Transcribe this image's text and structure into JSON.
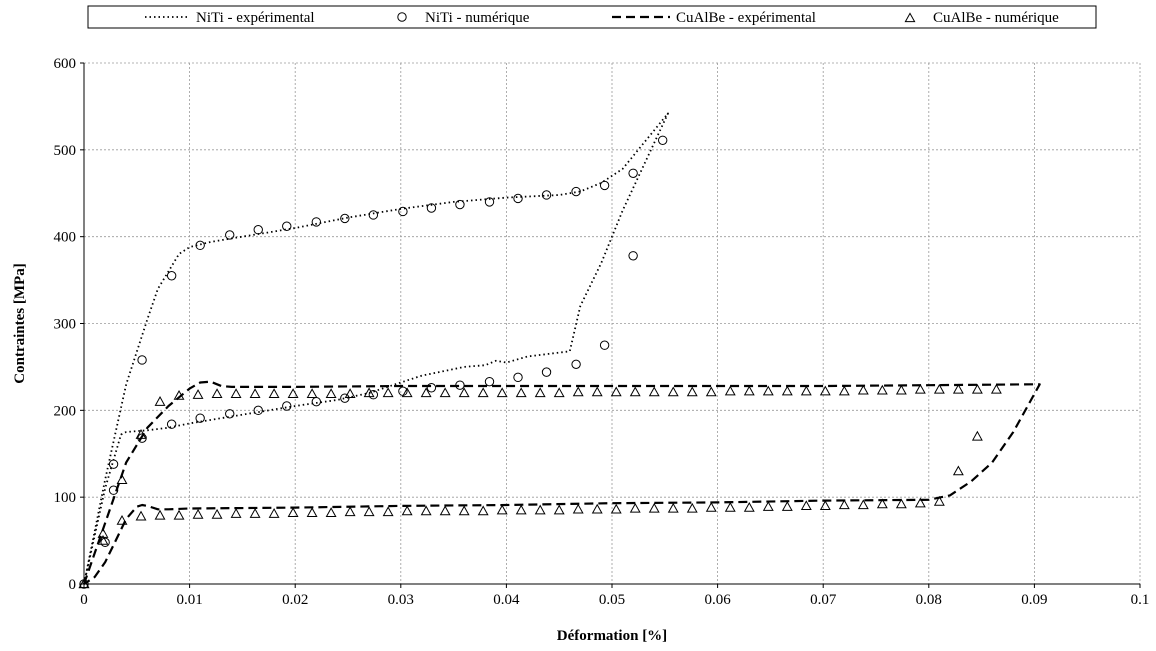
{
  "chart_data": {
    "type": "line",
    "xlabel": "Déformation [%]",
    "ylabel": "Contraintes [MPa]",
    "xlim": [
      0,
      0.1
    ],
    "ylim": [
      0,
      600
    ],
    "x_ticks": [
      "0",
      "0.01",
      "0.02",
      "0.03",
      "0.04",
      "0.05",
      "0.06",
      "0.07",
      "0.08",
      "0.09",
      "0.1"
    ],
    "y_ticks": [
      "0",
      "100",
      "200",
      "300",
      "400",
      "500",
      "600"
    ],
    "x_tick_values": [
      0,
      0.01,
      0.02,
      0.03,
      0.04,
      0.05,
      0.06,
      0.07,
      0.08,
      0.09,
      0.1
    ],
    "y_tick_values": [
      0,
      100,
      200,
      300,
      400,
      500,
      600
    ],
    "grid": true,
    "legend_position": "top",
    "series": [
      {
        "name": "NiTi - expérimental",
        "style": "dotted",
        "x": [
          0,
          0.002,
          0.004,
          0.006,
          0.007,
          0.008,
          0.009,
          0.01,
          0.012,
          0.014,
          0.016,
          0.018,
          0.02,
          0.025,
          0.03,
          0.035,
          0.04,
          0.045,
          0.047,
          0.049,
          0.051,
          0.0553,
          0.051,
          0.049,
          0.047,
          0.046,
          0.044,
          0.042,
          0.04,
          0.039,
          0.038,
          0.036,
          0.034,
          0.032,
          0.03,
          0.027,
          0.024,
          0.02,
          0.015,
          0.01,
          0.008,
          0.006,
          0.004,
          0.0035,
          0.002,
          0
        ],
        "y": [
          0,
          120,
          230,
          305,
          340,
          360,
          380,
          388,
          394,
          398,
          402,
          406,
          410,
          422,
          432,
          440,
          445,
          448,
          452,
          462,
          478,
          542,
          430,
          370,
          320,
          268,
          265,
          262,
          255,
          257,
          252,
          250,
          245,
          240,
          232,
          220,
          212,
          205,
          195,
          185,
          180,
          177,
          175,
          172,
          110,
          0
        ]
      },
      {
        "name": "NiTi - numérique",
        "style": "circle",
        "x": [
          0,
          0.0028,
          0.0055,
          0.0083,
          0.011,
          0.0138,
          0.0165,
          0.0192,
          0.022,
          0.0247,
          0.0274,
          0.0302,
          0.0329,
          0.0356,
          0.0384,
          0.0411,
          0.0438,
          0.0466,
          0.0493,
          0.052,
          0.0548,
          0.052,
          0.0493,
          0.0466,
          0.0438,
          0.0411,
          0.0384,
          0.0356,
          0.0329,
          0.0302,
          0.0274,
          0.0247,
          0.022,
          0.0192,
          0.0165,
          0.0138,
          0.011,
          0.0083,
          0.0055,
          0.0028,
          0.002
        ],
        "y": [
          0,
          138,
          258,
          355,
          390,
          402,
          408,
          412,
          417,
          421,
          425,
          429,
          433,
          437,
          440,
          444,
          448,
          452,
          459,
          473,
          511,
          378,
          275,
          253,
          244,
          238,
          233,
          229,
          226,
          222,
          218,
          214,
          210,
          205,
          200,
          196,
          191,
          184,
          168,
          108,
          48
        ]
      },
      {
        "name": "CuAlBe - expérimental",
        "style": "dashed",
        "x": [
          0,
          0.002,
          0.004,
          0.006,
          0.008,
          0.01,
          0.011,
          0.012,
          0.013,
          0.014,
          0.02,
          0.03,
          0.04,
          0.05,
          0.06,
          0.07,
          0.08,
          0.09,
          0.0905,
          0.088,
          0.086,
          0.084,
          0.082,
          0.08,
          0.07,
          0.06,
          0.05,
          0.04,
          0.03,
          0.02,
          0.01,
          0.008,
          0.007,
          0.006,
          0.0055,
          0.005,
          0.004,
          0.003,
          0.002,
          0.001,
          0
        ],
        "y": [
          0,
          70,
          140,
          180,
          205,
          225,
          232,
          233,
          228,
          227,
          227,
          228,
          228,
          228,
          228,
          228,
          229,
          230,
          230,
          175,
          140,
          118,
          102,
          97,
          96,
          94,
          93,
          91,
          90,
          88,
          87,
          86,
          86,
          90,
          91,
          89,
          75,
          50,
          25,
          8,
          0
        ]
      },
      {
        "name": "CuAlBe - numérique",
        "style": "triangle",
        "x": [
          0,
          0.0018,
          0.0036,
          0.0054,
          0.0072,
          0.009,
          0.0108,
          0.0126,
          0.0144,
          0.0162,
          0.018,
          0.0198,
          0.0216,
          0.0234,
          0.0252,
          0.027,
          0.0288,
          0.0306,
          0.0324,
          0.0342,
          0.036,
          0.0378,
          0.0396,
          0.0414,
          0.0432,
          0.045,
          0.0468,
          0.0486,
          0.0504,
          0.0522,
          0.054,
          0.0558,
          0.0576,
          0.0594,
          0.0612,
          0.063,
          0.0648,
          0.0666,
          0.0684,
          0.0702,
          0.072,
          0.0738,
          0.0756,
          0.0774,
          0.0792,
          0.081,
          0.0828,
          0.0846,
          0.0864,
          0.0846,
          0.0828,
          0.081,
          0.0792,
          0.0774,
          0.0756,
          0.0738,
          0.072,
          0.0702,
          0.0684,
          0.0666,
          0.0648,
          0.063,
          0.0612,
          0.0594,
          0.0576,
          0.0558,
          0.054,
          0.0522,
          0.0504,
          0.0486,
          0.0468,
          0.045,
          0.0432,
          0.0414,
          0.0396,
          0.0378,
          0.036,
          0.0342,
          0.0324,
          0.0306,
          0.0288,
          0.027,
          0.0252,
          0.0234,
          0.0216,
          0.0198,
          0.018,
          0.0162,
          0.0144,
          0.0126,
          0.0108,
          0.009,
          0.0072,
          0.0054,
          0.0036,
          0.0018,
          0
        ],
        "y": [
          0,
          58,
          120,
          172,
          210,
          217,
          218,
          219,
          219,
          219,
          219,
          219,
          219,
          219,
          219,
          220,
          220,
          220,
          220,
          220,
          220,
          220,
          220,
          220,
          220,
          220,
          221,
          221,
          221,
          221,
          221,
          221,
          221,
          221,
          222,
          222,
          222,
          222,
          222,
          222,
          222,
          223,
          223,
          223,
          224,
          224,
          224,
          224,
          224,
          170,
          130,
          95,
          93,
          92,
          92,
          91,
          91,
          90,
          90,
          89,
          89,
          88,
          88,
          88,
          87,
          87,
          87,
          87,
          86,
          86,
          86,
          85,
          85,
          85,
          85,
          84,
          84,
          84,
          84,
          84,
          83,
          83,
          83,
          82,
          82,
          82,
          81,
          81,
          81,
          80,
          80,
          79,
          79,
          78,
          73,
          50,
          0
        ]
      }
    ]
  }
}
